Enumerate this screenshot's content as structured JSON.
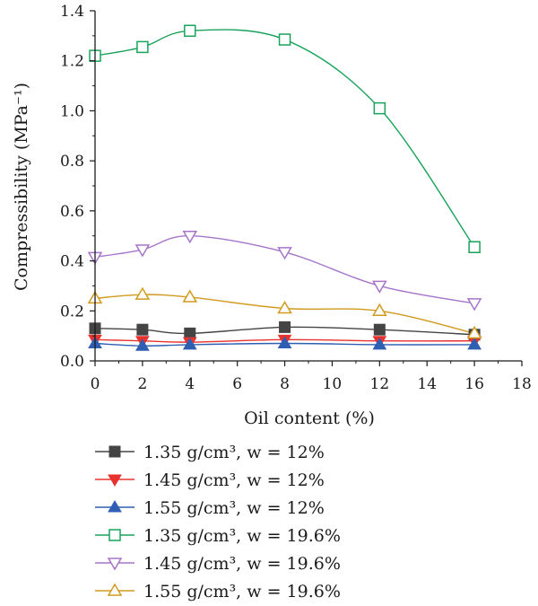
{
  "chart_data": {
    "type": "line",
    "xlabel": "Oil content (%)",
    "ylabel": "Compressibility (MPa⁻¹)",
    "xlim": [
      0,
      18
    ],
    "ylim": [
      0,
      1.4
    ],
    "xticks": [
      0,
      2,
      4,
      6,
      8,
      10,
      12,
      14,
      16,
      18
    ],
    "yticks": [
      0.0,
      0.2,
      0.4,
      0.6,
      0.8,
      1.0,
      1.2,
      1.4
    ],
    "xtick_labels": [
      "0",
      "2",
      "4",
      "6",
      "8",
      "10",
      "12",
      "14",
      "16",
      "18"
    ],
    "ytick_labels": [
      "0.0",
      "0.2",
      "0.4",
      "0.6",
      "0.8",
      "1.0",
      "1.2",
      "1.4"
    ],
    "x": [
      0,
      2,
      4,
      8,
      12,
      16
    ],
    "grid": false,
    "legend_position": "bottom",
    "series": [
      {
        "name": "1.35 g/cm³, w = 12%",
        "marker": "square-filled",
        "color": "#444444",
        "values": [
          0.13,
          0.125,
          0.11,
          0.135,
          0.125,
          0.105
        ]
      },
      {
        "name": "1.45 g/cm³, w = 12%",
        "marker": "triangle-down-filled",
        "color": "#e8322e",
        "values": [
          0.085,
          0.08,
          0.075,
          0.085,
          0.08,
          0.08
        ]
      },
      {
        "name": "1.55 g/cm³, w = 12%",
        "marker": "triangle-up-filled",
        "color": "#2f5fb3",
        "values": [
          0.07,
          0.06,
          0.065,
          0.07,
          0.065,
          0.065
        ]
      },
      {
        "name": "1.35 g/cm³, w = 19.6%",
        "marker": "square-open",
        "color": "#19a35a",
        "values": [
          1.22,
          1.255,
          1.32,
          1.285,
          1.01,
          0.455
        ]
      },
      {
        "name": "1.45 g/cm³, w = 19.6%",
        "marker": "triangle-down-open",
        "color": "#a675c9",
        "values": [
          0.415,
          0.445,
          0.5,
          0.435,
          0.3,
          0.23
        ]
      },
      {
        "name": "1.55 g/cm³, w = 19.6%",
        "marker": "triangle-up-open",
        "color": "#d19a1e",
        "values": [
          0.25,
          0.265,
          0.255,
          0.21,
          0.2,
          0.11
        ]
      }
    ]
  }
}
